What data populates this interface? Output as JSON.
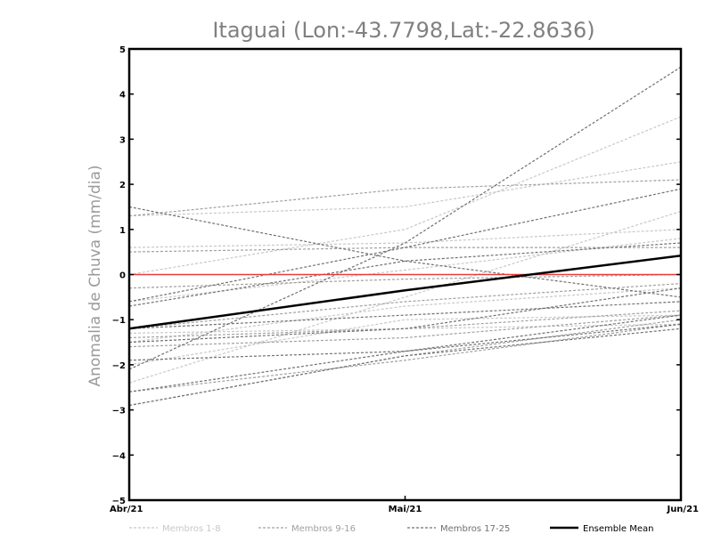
{
  "chart_data": {
    "type": "line",
    "title": "Itaguai (Lon:-43.7798,Lat:-22.8636)",
    "ylabel": "Anomalia de Chuva (mm/dia)",
    "xlabel": "",
    "categories": [
      "Abr/21",
      "Mai/21",
      "Jun/21"
    ],
    "ylim": [
      -5,
      5
    ],
    "yticks": [
      5,
      4,
      3,
      2,
      1,
      0,
      -1,
      -2,
      -3,
      -4,
      -5
    ],
    "ytick_labels": [
      "5",
      "4",
      "3",
      "2",
      "1",
      "0",
      "−1",
      "−2",
      "−3",
      "−4",
      "−5"
    ],
    "zero_line_color": "#e83c3c",
    "groups": [
      {
        "name": "Membros 1-8",
        "color": "#c8c8c8",
        "series": [
          {
            "values": [
              1.3,
              1.5,
              2.5
            ]
          },
          {
            "values": [
              0.6,
              0.7,
              1.0
            ]
          },
          {
            "values": [
              0.0,
              1.0,
              3.5
            ]
          },
          {
            "values": [
              -0.6,
              0.1,
              0.8
            ]
          },
          {
            "values": [
              -1.5,
              -0.7,
              -0.3
            ]
          },
          {
            "values": [
              -2.0,
              -1.0,
              -0.9
            ]
          },
          {
            "values": [
              -2.4,
              -0.5,
              1.4
            ]
          },
          {
            "values": [
              -1.3,
              -1.2,
              -1.1
            ]
          }
        ]
      },
      {
        "name": "Membros 9-16",
        "color": "#a0a0a0",
        "series": [
          {
            "values": [
              1.3,
              1.9,
              2.1
            ]
          },
          {
            "values": [
              0.5,
              0.6,
              0.6
            ]
          },
          {
            "values": [
              -0.3,
              -0.1,
              0.0
            ]
          },
          {
            "values": [
              -1.2,
              -0.6,
              -0.2
            ]
          },
          {
            "values": [
              -1.4,
              -1.2,
              -0.8
            ]
          },
          {
            "values": [
              -1.6,
              -1.4,
              -0.9
            ]
          },
          {
            "values": [
              -2.6,
              -1.9,
              -1.1
            ]
          },
          {
            "values": [
              -2.9,
              -1.8,
              -1.0
            ]
          }
        ]
      },
      {
        "name": "Membros 17-25",
        "color": "#707070",
        "series": [
          {
            "values": [
              1.5,
              0.3,
              -0.5
            ]
          },
          {
            "values": [
              -2.1,
              0.7,
              4.6
            ]
          },
          {
            "values": [
              -0.6,
              0.6,
              1.9
            ]
          },
          {
            "values": [
              -0.7,
              0.3,
              0.7
            ]
          },
          {
            "values": [
              -1.2,
              -0.9,
              -0.6
            ]
          },
          {
            "values": [
              -1.5,
              -1.2,
              -0.3
            ]
          },
          {
            "values": [
              -1.9,
              -1.7,
              -0.9
            ]
          },
          {
            "values": [
              -2.6,
              -1.7,
              -1.1
            ]
          },
          {
            "values": [
              -2.9,
              -1.8,
              -1.2
            ]
          }
        ]
      }
    ],
    "ensemble_mean": {
      "name": "Ensemble Mean",
      "color": "#000000",
      "values": [
        -1.2,
        -0.35,
        0.42
      ]
    },
    "legend": [
      {
        "label": "Membros 1-8",
        "color": "#c8c8c8",
        "dashed": true
      },
      {
        "label": "Membros 9-16",
        "color": "#a0a0a0",
        "dashed": true
      },
      {
        "label": "Membros 17-25",
        "color": "#707070",
        "dashed": true
      },
      {
        "label": "Ensemble Mean",
        "color": "#000000",
        "dashed": false
      }
    ],
    "legend_position": "bottom",
    "grid": false
  }
}
